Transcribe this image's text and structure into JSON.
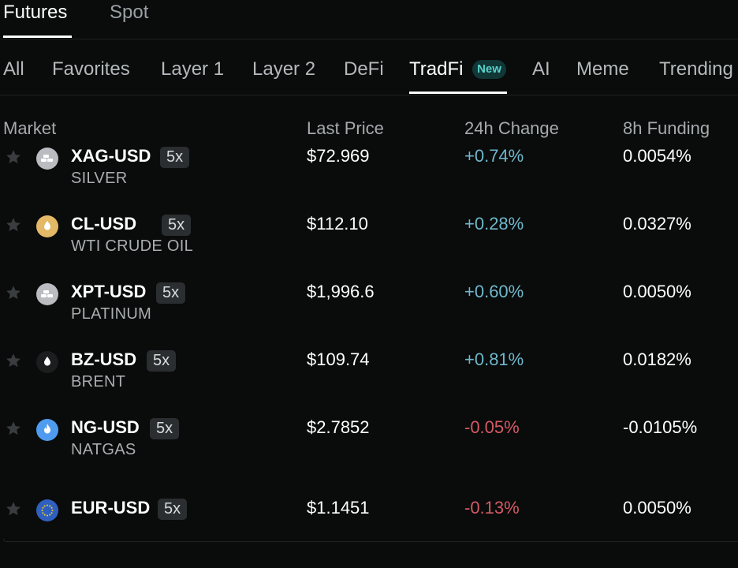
{
  "top_tabs": [
    {
      "label": "Futures",
      "active": true
    },
    {
      "label": "Spot",
      "active": false
    }
  ],
  "categories": [
    {
      "label": "All"
    },
    {
      "label": "Favorites"
    },
    {
      "label": "Layer 1"
    },
    {
      "label": "Layer 2"
    },
    {
      "label": "DeFi"
    },
    {
      "label": "TradFi",
      "active": true,
      "badge": "New"
    },
    {
      "label": "AI"
    },
    {
      "label": "Meme"
    },
    {
      "label": "Trending"
    }
  ],
  "table": {
    "headers": {
      "market": "Market",
      "last_price": "Last Price",
      "change_24h": "24h Change",
      "funding_8h": "8h Funding"
    },
    "rows": [
      {
        "symbol": "XAG-USD",
        "leverage": "5x",
        "name": "SILVER",
        "price": "$72.969",
        "change": "+0.74%",
        "direction": "up",
        "funding": "0.0054%",
        "icon": "metal-bars-icon"
      },
      {
        "symbol": "CL-USD",
        "leverage": "5x",
        "name": "WTI CRUDE OIL",
        "price": "$112.10",
        "change": "+0.28%",
        "direction": "up",
        "funding": "0.0327%",
        "icon": "oil-drop-icon"
      },
      {
        "symbol": "XPT-USD",
        "leverage": "5x",
        "name": "PLATINUM",
        "price": "$1,996.6",
        "change": "+0.60%",
        "direction": "up",
        "funding": "0.0050%",
        "icon": "metal-bars-icon"
      },
      {
        "symbol": "BZ-USD",
        "leverage": "5x",
        "name": "BRENT",
        "price": "$109.74",
        "change": "+0.81%",
        "direction": "up",
        "funding": "0.0182%",
        "icon": "oil-drop-icon"
      },
      {
        "symbol": "NG-USD",
        "leverage": "5x",
        "name": "NATGAS",
        "price": "$2.7852",
        "change": "-0.05%",
        "direction": "down",
        "funding": "-0.0105%",
        "icon": "flame-icon"
      },
      {
        "symbol": "EUR-USD",
        "leverage": "5x",
        "name": "",
        "price": "$1.1451",
        "change": "-0.13%",
        "direction": "down",
        "funding": "0.0050%",
        "icon": "eu-flag-icon"
      }
    ]
  },
  "colors": {
    "background": "#0a0b0b",
    "positive": "#6fb8cc",
    "negative": "#d45a64",
    "badge_bg": "#113737",
    "badge_text": "#58d1cc"
  }
}
